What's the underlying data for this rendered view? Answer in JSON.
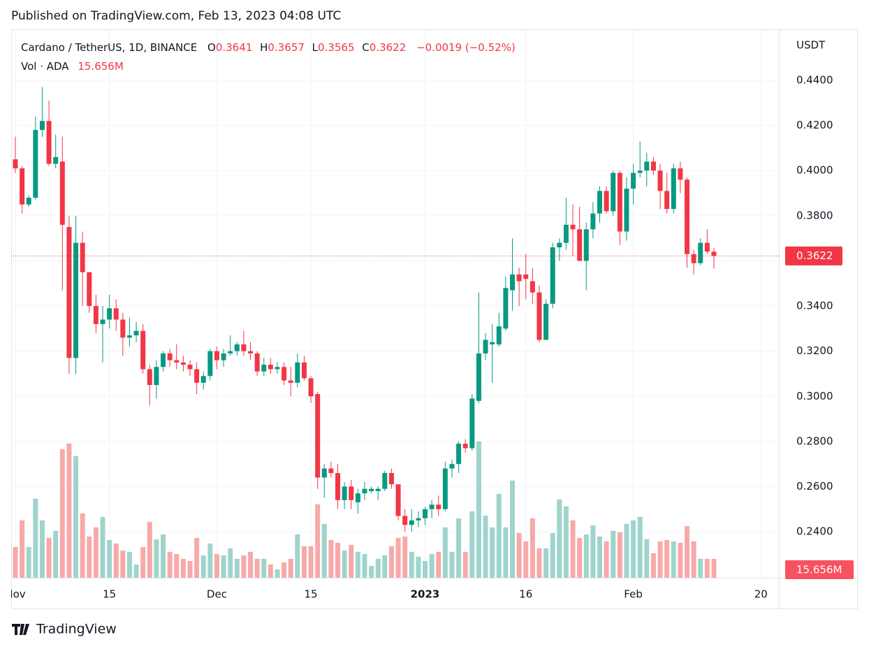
{
  "header": "Published on TradingView.com, Feb 13, 2023 04:08 UTC",
  "logo": "TradingView",
  "chart_data": {
    "type": "candlestick",
    "symbol": "Cardano / TetherUS, 1D, BINANCE",
    "ohlc_keys": [
      "O",
      "H",
      "L",
      "C"
    ],
    "change": "−0.0019 (−0.52%)",
    "volume_title": "Vol · ADA",
    "last_volume_label": "15.656M",
    "price_axis_label": "USDT",
    "up_color": "#089981",
    "down_color": "#f23645",
    "volume_up_color": "#9fd4cc",
    "volume_down_color": "#f7a9a9",
    "grid": true,
    "x": [
      "2022-11-01",
      "2022-11-02",
      "2022-11-03",
      "2022-11-04",
      "2022-11-05",
      "2022-11-06",
      "2022-11-07",
      "2022-11-08",
      "2022-11-09",
      "2022-11-10",
      "2022-11-11",
      "2022-11-12",
      "2022-11-13",
      "2022-11-14",
      "2022-11-15",
      "2022-11-16",
      "2022-11-17",
      "2022-11-18",
      "2022-11-19",
      "2022-11-20",
      "2022-11-21",
      "2022-11-22",
      "2022-11-23",
      "2022-11-24",
      "2022-11-25",
      "2022-11-26",
      "2022-11-27",
      "2022-11-28",
      "2022-11-29",
      "2022-11-30",
      "2022-12-01",
      "2022-12-02",
      "2022-12-03",
      "2022-12-04",
      "2022-12-05",
      "2022-12-06",
      "2022-12-07",
      "2022-12-08",
      "2022-12-09",
      "2022-12-10",
      "2022-12-11",
      "2022-12-12",
      "2022-12-13",
      "2022-12-14",
      "2022-12-15",
      "2022-12-16",
      "2022-12-17",
      "2022-12-18",
      "2022-12-19",
      "2022-12-20",
      "2022-12-21",
      "2022-12-22",
      "2022-12-23",
      "2022-12-24",
      "2022-12-25",
      "2022-12-26",
      "2022-12-27",
      "2022-12-28",
      "2022-12-29",
      "2022-12-30",
      "2022-12-31",
      "2023-01-01",
      "2023-01-02",
      "2023-01-03",
      "2023-01-04",
      "2023-01-05",
      "2023-01-06",
      "2023-01-07",
      "2023-01-08",
      "2023-01-09",
      "2023-01-10",
      "2023-01-11",
      "2023-01-12",
      "2023-01-13",
      "2023-01-14",
      "2023-01-15",
      "2023-01-16",
      "2023-01-17",
      "2023-01-18",
      "2023-01-19",
      "2023-01-20",
      "2023-01-21",
      "2023-01-22",
      "2023-01-23",
      "2023-01-24",
      "2023-01-25",
      "2023-01-26",
      "2023-01-27",
      "2023-01-28",
      "2023-01-29",
      "2023-01-30",
      "2023-01-31",
      "2023-02-01",
      "2023-02-02",
      "2023-02-03",
      "2023-02-04",
      "2023-02-05",
      "2023-02-06",
      "2023-02-07",
      "2023-02-08",
      "2023-02-09",
      "2023-02-10",
      "2023-02-11",
      "2023-02-12",
      "2023-02-13"
    ],
    "open": [
      0.405,
      0.401,
      0.385,
      0.388,
      0.418,
      0.422,
      0.403,
      0.404,
      0.375,
      0.317,
      0.368,
      0.355,
      0.34,
      0.332,
      0.334,
      0.339,
      0.334,
      0.326,
      0.327,
      0.329,
      0.312,
      0.305,
      0.313,
      0.319,
      0.316,
      0.315,
      0.314,
      0.312,
      0.306,
      0.309,
      0.32,
      0.316,
      0.319,
      0.32,
      0.323,
      0.32,
      0.319,
      0.311,
      0.314,
      0.312,
      0.313,
      0.307,
      0.306,
      0.315,
      0.308,
      0.301,
      0.264,
      0.268,
      0.266,
      0.254,
      0.26,
      0.253,
      0.257,
      0.258,
      0.258,
      0.259,
      0.266,
      0.261,
      0.247,
      0.243,
      0.245,
      0.246,
      0.25,
      0.252,
      0.25,
      0.268,
      0.27,
      0.279,
      0.277,
      0.298,
      0.319,
      0.323,
      0.323,
      0.33,
      0.347,
      0.354,
      0.354,
      0.351,
      0.346,
      0.325,
      0.341,
      0.366,
      0.368,
      0.376,
      0.374,
      0.36,
      0.374,
      0.381,
      0.391,
      0.382,
      0.399,
      0.373,
      0.392,
      0.399,
      0.4,
      0.404,
      0.4,
      0.391,
      0.383,
      0.401,
      0.396,
      0.363,
      0.359,
      0.368,
      0.3641
    ],
    "high": [
      0.415,
      0.402,
      0.389,
      0.424,
      0.437,
      0.431,
      0.416,
      0.415,
      0.38,
      0.38,
      0.373,
      0.355,
      0.345,
      0.34,
      0.345,
      0.343,
      0.337,
      0.335,
      0.333,
      0.332,
      0.314,
      0.316,
      0.32,
      0.321,
      0.323,
      0.318,
      0.316,
      0.315,
      0.311,
      0.321,
      0.322,
      0.321,
      0.327,
      0.324,
      0.329,
      0.324,
      0.32,
      0.317,
      0.317,
      0.315,
      0.315,
      0.313,
      0.319,
      0.318,
      0.309,
      0.302,
      0.27,
      0.271,
      0.27,
      0.262,
      0.263,
      0.259,
      0.262,
      0.26,
      0.26,
      0.267,
      0.268,
      0.261,
      0.25,
      0.25,
      0.249,
      0.251,
      0.254,
      0.256,
      0.271,
      0.272,
      0.28,
      0.281,
      0.301,
      0.346,
      0.328,
      0.332,
      0.337,
      0.353,
      0.37,
      0.357,
      0.363,
      0.357,
      0.349,
      0.343,
      0.368,
      0.37,
      0.388,
      0.385,
      0.384,
      0.377,
      0.386,
      0.393,
      0.393,
      0.4,
      0.4,
      0.397,
      0.403,
      0.413,
      0.408,
      0.406,
      0.403,
      0.399,
      0.403,
      0.404,
      0.397,
      0.365,
      0.37,
      0.374,
      0.3657
    ],
    "low": [
      0.399,
      0.381,
      0.384,
      0.387,
      0.415,
      0.402,
      0.401,
      0.347,
      0.31,
      0.31,
      0.34,
      0.337,
      0.328,
      0.315,
      0.33,
      0.329,
      0.318,
      0.322,
      0.324,
      0.31,
      0.296,
      0.299,
      0.311,
      0.313,
      0.312,
      0.311,
      0.309,
      0.301,
      0.303,
      0.307,
      0.312,
      0.313,
      0.318,
      0.318,
      0.318,
      0.316,
      0.309,
      0.309,
      0.31,
      0.31,
      0.305,
      0.3,
      0.304,
      0.307,
      0.297,
      0.259,
      0.255,
      0.264,
      0.25,
      0.25,
      0.25,
      0.248,
      0.254,
      0.257,
      0.254,
      0.258,
      0.259,
      0.245,
      0.24,
      0.24,
      0.242,
      0.243,
      0.246,
      0.247,
      0.249,
      0.264,
      0.266,
      0.275,
      0.276,
      0.297,
      0.316,
      0.306,
      0.322,
      0.329,
      0.338,
      0.34,
      0.343,
      0.341,
      0.324,
      0.325,
      0.339,
      0.36,
      0.365,
      0.362,
      0.36,
      0.347,
      0.37,
      0.377,
      0.381,
      0.38,
      0.367,
      0.369,
      0.385,
      0.397,
      0.393,
      0.398,
      0.383,
      0.381,
      0.381,
      0.39,
      0.357,
      0.354,
      0.358,
      0.363,
      0.3565
    ],
    "close": [
      0.401,
      0.385,
      0.388,
      0.418,
      0.422,
      0.403,
      0.406,
      0.376,
      0.317,
      0.368,
      0.355,
      0.34,
      0.332,
      0.334,
      0.339,
      0.334,
      0.326,
      0.327,
      0.329,
      0.312,
      0.305,
      0.313,
      0.319,
      0.316,
      0.315,
      0.314,
      0.312,
      0.306,
      0.309,
      0.32,
      0.316,
      0.319,
      0.32,
      0.323,
      0.32,
      0.319,
      0.311,
      0.314,
      0.312,
      0.313,
      0.307,
      0.306,
      0.315,
      0.308,
      0.3,
      0.264,
      0.268,
      0.266,
      0.254,
      0.26,
      0.254,
      0.257,
      0.259,
      0.259,
      0.259,
      0.266,
      0.261,
      0.247,
      0.243,
      0.245,
      0.246,
      0.25,
      0.252,
      0.25,
      0.268,
      0.27,
      0.279,
      0.277,
      0.299,
      0.319,
      0.325,
      0.324,
      0.331,
      0.348,
      0.354,
      0.351,
      0.352,
      0.346,
      0.325,
      0.341,
      0.366,
      0.368,
      0.376,
      0.374,
      0.36,
      0.374,
      0.381,
      0.391,
      0.382,
      0.399,
      0.373,
      0.392,
      0.399,
      0.4,
      0.404,
      0.4,
      0.391,
      0.383,
      0.401,
      0.396,
      0.363,
      0.359,
      0.368,
      0.3641,
      0.3622
    ],
    "volume": [
      25.5,
      47.6,
      25.5,
      65.5,
      47.6,
      33.1,
      38.9,
      106.7,
      111.4,
      100.9,
      53.4,
      34.2,
      41.8,
      50.5,
      31.3,
      28.4,
      22.6,
      21.5,
      11.0,
      25.5,
      46.4,
      31.9,
      36.0,
      21.5,
      19.7,
      15.7,
      13.9,
      33.1,
      18.6,
      28.4,
      19.7,
      18.6,
      24.4,
      15.7,
      18.6,
      21.5,
      15.7,
      15.7,
      11.0,
      7.0,
      12.8,
      15.7,
      36.0,
      26.1,
      26.1,
      60.9,
      44.7,
      31.3,
      29.0,
      22.6,
      27.3,
      21.5,
      19.7,
      9.9,
      15.7,
      18.6,
      26.1,
      33.1,
      34.2,
      21.5,
      17.4,
      13.9,
      19.7,
      21.5,
      41.8,
      21.5,
      49.3,
      21.5,
      55.1,
      113.1,
      51.6,
      41.8,
      69.6,
      41.8,
      80.6,
      37.1,
      30.2,
      49.3,
      24.4,
      24.4,
      37.1,
      65.0,
      59.2,
      47.6,
      33.1,
      36.0,
      43.5,
      34.2,
      30.2,
      38.9,
      37.7,
      44.7,
      47.6,
      50.5,
      31.9,
      20.3,
      30.2,
      31.3,
      30.2,
      29.0,
      42.9,
      30.2,
      15.7,
      15.7,
      15.656
    ],
    "ylim": [
      0.2196,
      0.4626
    ],
    "yticks": [
      {
        "value": 0.24,
        "label": "0.2400"
      },
      {
        "value": 0.26,
        "label": "0.2600"
      },
      {
        "value": 0.28,
        "label": "0.2800"
      },
      {
        "value": 0.3,
        "label": "0.3000"
      },
      {
        "value": 0.32,
        "label": "0.3200"
      },
      {
        "value": 0.34,
        "label": "0.3400"
      },
      {
        "value": 0.36,
        "label": "0.3600"
      },
      {
        "value": 0.38,
        "label": "0.3800"
      },
      {
        "value": 0.4,
        "label": "0.4000"
      },
      {
        "value": 0.42,
        "label": "0.4200"
      },
      {
        "value": 0.44,
        "label": "0.4400"
      }
    ],
    "vlim": [
      0,
      455
    ],
    "xticks": [
      {
        "value": "2022-11-01",
        "label": "Nov"
      },
      {
        "value": "2022-11-15",
        "label": "15"
      },
      {
        "value": "2022-12-01",
        "label": "Dec"
      },
      {
        "value": "2022-12-15",
        "label": "15"
      },
      {
        "value": "2023-01-01",
        "label": "2023"
      },
      {
        "value": "2023-01-16",
        "label": "16"
      },
      {
        "value": "2023-02-01",
        "label": "Feb"
      },
      {
        "value": "2023-02-20",
        "label": "20"
      }
    ]
  }
}
